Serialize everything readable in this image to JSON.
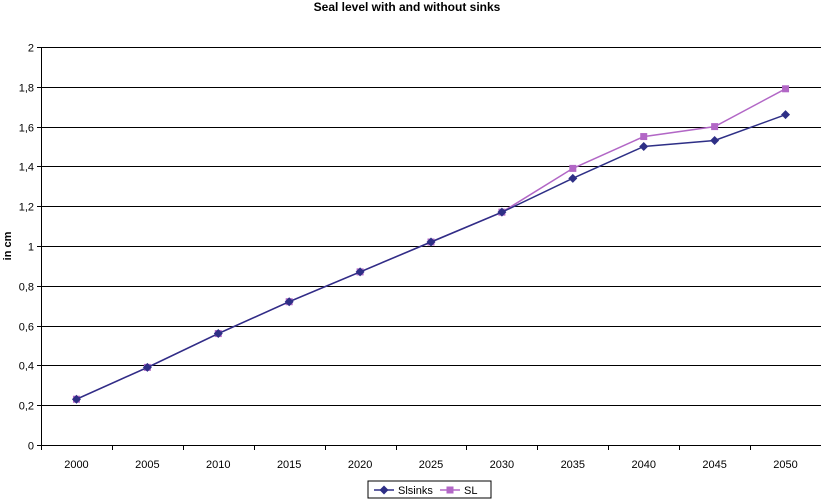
{
  "chart_data": {
    "type": "line",
    "title": "Seal level with and without sinks",
    "ylabel": "in cm",
    "xlabel": "",
    "categories": [
      "2000",
      "2005",
      "2010",
      "2015",
      "2020",
      "2025",
      "2030",
      "2035",
      "2040",
      "2045",
      "2050"
    ],
    "ylim": [
      0,
      2
    ],
    "ytick_step": 0.2,
    "ytick_labels": [
      "0",
      "0,2",
      "0,4",
      "0,6",
      "0,8",
      "1",
      "1,2",
      "1,4",
      "1,6",
      "1,8",
      "2"
    ],
    "grid": "horizontal",
    "legend_position": "bottom",
    "series": [
      {
        "name": "Slsinks",
        "color": "#2e2f86",
        "marker": "diamond",
        "values": [
          0.23,
          0.39,
          0.56,
          0.72,
          0.87,
          1.02,
          1.17,
          1.34,
          1.5,
          1.53,
          1.66
        ]
      },
      {
        "name": "SL",
        "color": "#b267c6",
        "marker": "square",
        "values": [
          0.23,
          0.39,
          0.56,
          0.72,
          0.87,
          1.02,
          1.17,
          1.39,
          1.55,
          1.6,
          1.79
        ]
      }
    ]
  }
}
